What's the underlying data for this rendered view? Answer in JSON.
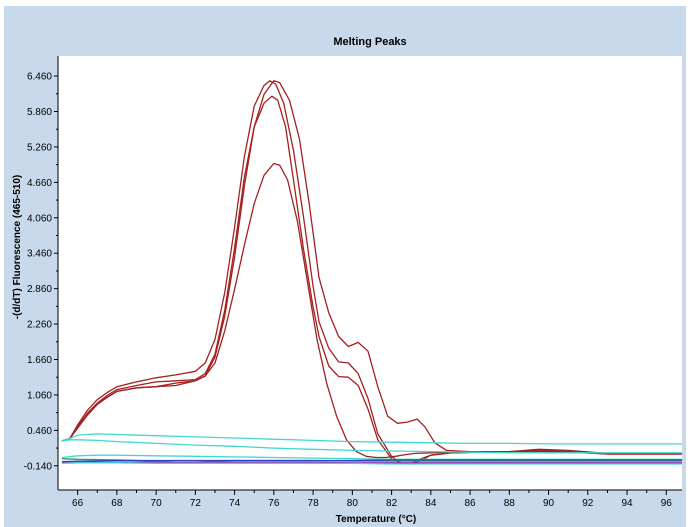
{
  "chart_data": {
    "type": "line",
    "title": "Melting Peaks",
    "xlabel": "Temperature (°C)",
    "ylabel": "-(d/dT) Fluorescence (465-510)",
    "xlim": [
      65,
      96.8
    ],
    "ylim": [
      -0.55,
      6.8
    ],
    "x_ticks": [
      66,
      68,
      70,
      72,
      74,
      76,
      78,
      80,
      82,
      84,
      86,
      88,
      90,
      92,
      94,
      96
    ],
    "x_tick_labels": [
      "66",
      "68",
      "70",
      "72",
      "74",
      "76",
      "78",
      "80",
      "82",
      "84",
      "86",
      "88",
      "90",
      "92",
      "94",
      "96"
    ],
    "y_ticks": [
      -0.14,
      0.46,
      1.06,
      1.66,
      2.26,
      2.86,
      3.46,
      4.06,
      4.66,
      5.26,
      5.86,
      6.46
    ],
    "y_tick_labels": [
      "-0.140",
      "0.460",
      "1.060",
      "1.660",
      "2.260",
      "2.860",
      "3.460",
      "4.060",
      "4.660",
      "5.260",
      "5.860",
      "6.460"
    ],
    "grid": false,
    "legend": "none",
    "colors": {
      "panel_background": "#c7d9ea",
      "plot_background": "#ffffff",
      "positive_curves": "#a52020",
      "baseline_cyan": "#40d8d0",
      "baseline_blue": "#3040c0",
      "baseline_green": "#20a060",
      "baseline_magenta": "#9030b0"
    },
    "series": [
      {
        "color": "#a52020",
        "x": [
          65.2,
          65.6,
          66,
          66.5,
          67,
          67.5,
          68,
          69,
          70,
          71,
          72,
          72.5,
          73,
          73.5,
          74,
          74.5,
          75,
          75.5,
          75.8,
          76.1,
          76.5,
          77,
          77.5,
          78,
          78.3,
          78.8,
          79.3,
          79.8,
          80.3,
          80.8,
          81.3,
          82,
          82.5,
          83,
          83.5,
          84,
          85,
          88,
          89.5,
          91,
          93,
          96.8
        ],
        "y": [
          0.28,
          0.32,
          0.55,
          0.8,
          0.98,
          1.1,
          1.2,
          1.28,
          1.35,
          1.4,
          1.46,
          1.6,
          2.0,
          2.8,
          3.9,
          5.1,
          5.95,
          6.3,
          6.38,
          6.32,
          6.0,
          5.2,
          4.1,
          2.9,
          2.3,
          1.85,
          1.62,
          1.6,
          1.42,
          1.0,
          0.4,
          0.02,
          -0.1,
          -0.11,
          -0.05,
          0.04,
          0.08,
          0.1,
          0.14,
          0.12,
          0.07,
          0.07
        ]
      },
      {
        "color": "#a52020",
        "x": [
          65.2,
          65.6,
          66,
          66.5,
          67,
          67.5,
          68,
          69,
          70,
          71,
          72,
          72.5,
          73,
          73.5,
          74,
          74.5,
          75,
          75.5,
          76,
          76.3,
          76.8,
          77.3,
          77.8,
          78.3,
          78.8,
          79.3,
          79.8,
          80.3,
          80.8,
          81.3,
          81.8,
          82.3,
          82.8,
          83.3,
          83.7,
          84.2,
          84.8,
          86,
          88,
          89.5,
          91,
          93,
          96.8
        ],
        "y": [
          0.28,
          0.32,
          0.5,
          0.72,
          0.9,
          1.02,
          1.12,
          1.18,
          1.2,
          1.26,
          1.3,
          1.38,
          1.7,
          2.4,
          3.4,
          4.6,
          5.6,
          6.15,
          6.38,
          6.35,
          6.05,
          5.4,
          4.3,
          3.05,
          2.45,
          2.05,
          1.88,
          1.95,
          1.8,
          1.2,
          0.7,
          0.58,
          0.6,
          0.65,
          0.52,
          0.25,
          0.12,
          0.1,
          0.1,
          0.12,
          0.1,
          0.06,
          0.06
        ]
      },
      {
        "color": "#a52020",
        "x": [
          65.2,
          65.6,
          66,
          66.5,
          67,
          67.5,
          68,
          69,
          70,
          71,
          72,
          72.5,
          73,
          73.5,
          74,
          74.5,
          75,
          75.5,
          75.9,
          76.2,
          76.6,
          77,
          77.5,
          78,
          78.3,
          78.8,
          79.3,
          79.8,
          80.3,
          80.8,
          81.3,
          82,
          82.5,
          83,
          83.5,
          84,
          85,
          88,
          89.5,
          91,
          93,
          96.8
        ],
        "y": [
          0.28,
          0.32,
          0.52,
          0.75,
          0.92,
          1.05,
          1.15,
          1.22,
          1.28,
          1.3,
          1.32,
          1.42,
          1.75,
          2.5,
          3.55,
          4.75,
          5.6,
          6.0,
          6.12,
          6.05,
          5.6,
          4.7,
          3.55,
          2.55,
          2.05,
          1.55,
          1.37,
          1.36,
          1.22,
          0.82,
          0.3,
          -0.02,
          -0.1,
          -0.1,
          -0.02,
          0.04,
          0.08,
          0.1,
          0.12,
          0.1,
          0.06,
          0.06
        ]
      },
      {
        "color": "#a52020",
        "x": [
          65.2,
          65.6,
          66,
          66.5,
          67,
          67.5,
          68,
          69,
          70,
          71,
          72,
          72.5,
          73,
          73.5,
          74,
          74.5,
          75,
          75.5,
          76,
          76.3,
          76.7,
          77.2,
          77.7,
          78.2,
          78.7,
          79.2,
          79.7,
          80.2,
          80.7,
          81.2,
          81.7,
          82.2,
          82.7,
          83.2,
          84,
          85,
          88,
          89.5,
          91,
          93,
          96.8
        ],
        "y": [
          0.28,
          0.32,
          0.5,
          0.72,
          0.9,
          1.02,
          1.12,
          1.18,
          1.2,
          1.22,
          1.3,
          1.38,
          1.6,
          2.15,
          2.85,
          3.6,
          4.3,
          4.78,
          4.98,
          4.95,
          4.7,
          4.0,
          3.0,
          2.0,
          1.25,
          0.7,
          0.3,
          0.1,
          0.02,
          0.0,
          0.0,
          0.02,
          0.05,
          0.07,
          0.08,
          0.09,
          0.1,
          0.1,
          0.09,
          0.06,
          0.06
        ]
      },
      {
        "color": "#40d8d0",
        "x": [
          65.2,
          65.6,
          66,
          67,
          68,
          70,
          72,
          74,
          76,
          78,
          80,
          82,
          84,
          86,
          88,
          90,
          92,
          94,
          96.8
        ],
        "y": [
          0.28,
          0.32,
          0.38,
          0.4,
          0.39,
          0.37,
          0.35,
          0.33,
          0.31,
          0.29,
          0.27,
          0.26,
          0.25,
          0.24,
          0.24,
          0.23,
          0.23,
          0.23,
          0.23
        ]
      },
      {
        "color": "#40d8d0",
        "x": [
          65.2,
          65.6,
          66,
          67,
          68,
          70,
          72,
          74,
          76,
          78,
          80,
          82,
          84,
          86,
          88,
          90,
          92,
          94,
          96.8
        ],
        "y": [
          0.28,
          0.3,
          0.3,
          0.29,
          0.27,
          0.24,
          0.21,
          0.19,
          0.16,
          0.14,
          0.12,
          0.11,
          0.1,
          0.09,
          0.08,
          0.08,
          0.08,
          0.08,
          0.08
        ]
      },
      {
        "color": "#40d8d0",
        "x": [
          65.2,
          66,
          67,
          68,
          70,
          72,
          74,
          76,
          78,
          80,
          82,
          84,
          86,
          88,
          90,
          92,
          94,
          96.8
        ],
        "y": [
          0.0,
          0.03,
          0.04,
          0.04,
          0.03,
          0.02,
          0.01,
          0.0,
          -0.01,
          -0.02,
          -0.03,
          -0.03,
          -0.03,
          -0.03,
          -0.03,
          -0.03,
          -0.03,
          -0.03
        ]
      },
      {
        "color": "#20a060",
        "x": [
          65.2,
          66,
          68,
          70,
          71,
          72,
          73,
          74,
          76,
          78,
          80,
          82,
          84,
          86,
          88,
          90,
          92,
          94,
          96.8
        ],
        "y": [
          -0.02,
          -0.03,
          -0.04,
          -0.06,
          -0.08,
          -0.08,
          -0.06,
          -0.05,
          -0.05,
          -0.05,
          -0.06,
          -0.06,
          -0.06,
          -0.06,
          -0.06,
          -0.06,
          -0.06,
          -0.06,
          -0.06
        ]
      },
      {
        "color": "#3040c0",
        "x": [
          65.2,
          66,
          68,
          70,
          72,
          74,
          76,
          78,
          80,
          82,
          84,
          86,
          88,
          90,
          92,
          94,
          96.8
        ],
        "y": [
          -0.07,
          -0.06,
          -0.05,
          -0.05,
          -0.05,
          -0.05,
          -0.05,
          -0.05,
          -0.05,
          -0.04,
          -0.04,
          -0.04,
          -0.04,
          -0.04,
          -0.04,
          -0.04,
          -0.04
        ]
      },
      {
        "color": "#9030b0",
        "x": [
          65.2,
          66,
          68,
          70,
          72,
          74,
          76,
          78,
          80,
          82,
          84,
          86,
          88,
          90,
          92,
          94,
          96.8
        ],
        "y": [
          -0.09,
          -0.08,
          -0.08,
          -0.08,
          -0.08,
          -0.08,
          -0.08,
          -0.08,
          -0.09,
          -0.09,
          -0.09,
          -0.09,
          -0.09,
          -0.09,
          -0.09,
          -0.09,
          -0.09
        ]
      },
      {
        "color": "#40d8d0",
        "x": [
          65.2,
          66,
          68,
          70,
          72,
          74,
          76,
          78,
          80,
          82,
          84,
          86,
          88,
          90,
          92,
          94,
          96.8
        ],
        "y": [
          -0.1,
          -0.09,
          -0.09,
          -0.1,
          -0.1,
          -0.1,
          -0.1,
          -0.1,
          -0.1,
          -0.11,
          -0.11,
          -0.11,
          -0.11,
          -0.11,
          -0.11,
          -0.11,
          -0.11
        ]
      }
    ]
  }
}
